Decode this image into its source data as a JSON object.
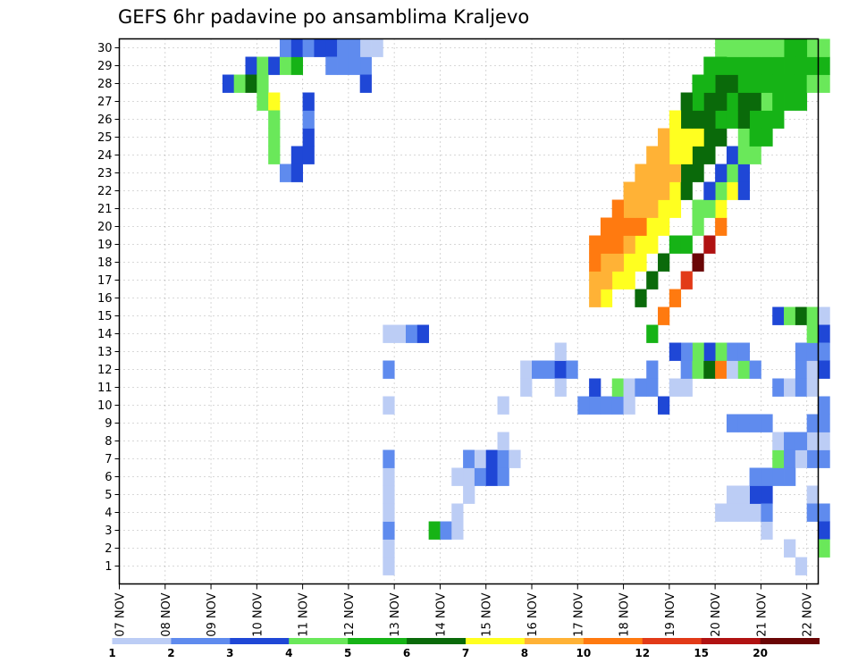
{
  "chart_data": {
    "type": "heatmap",
    "title": "GEFS 6hr padavine po ansamblima Kraljevo",
    "xlabel": "",
    "ylabel": "",
    "y_categories": [
      "1",
      "2",
      "3",
      "4",
      "5",
      "6",
      "7",
      "8",
      "9",
      "10",
      "11",
      "12",
      "13",
      "14",
      "15",
      "16",
      "17",
      "18",
      "19",
      "20",
      "21",
      "22",
      "23",
      "24",
      "25",
      "26",
      "27",
      "28",
      "29",
      "30"
    ],
    "x_tick_labels": [
      "07 NOV",
      "08 NOV",
      "09 NOV",
      "10 NOV",
      "11 NOV",
      "12 NOV",
      "13 NOV",
      "14 NOV",
      "15 NOV",
      "16 NOV",
      "17 NOV",
      "18 NOV",
      "19 NOV",
      "20 NOV",
      "21 NOV",
      "22 NOV"
    ],
    "x_unit": "6-hour steps from 07 NOV 00Z",
    "x_range": [
      0,
      61
    ],
    "grid": true,
    "legend": {
      "placement": "bottom",
      "colors": [
        "#bccdf5",
        "#5f8bee",
        "#1f47d6",
        "#6ae85a",
        "#16b316",
        "#0a6a0a",
        "#ffff20",
        "#ffb236",
        "#ff7a10",
        "#e23a18",
        "#b01212",
        "#6a0606"
      ],
      "tick_labels": [
        "1",
        "2",
        "3",
        "4",
        "5",
        "6",
        "7",
        "8",
        "10",
        "12",
        "15",
        "20"
      ]
    },
    "cells": [
      [
        11,
        29,
        3
      ],
      [
        12,
        29,
        4
      ],
      [
        13,
        29,
        3
      ],
      [
        14,
        29,
        4
      ],
      [
        15,
        29,
        5
      ],
      [
        21,
        29,
        2
      ],
      [
        21,
        30,
        1
      ],
      [
        21,
        28,
        3
      ],
      [
        23,
        1,
        1
      ],
      [
        23,
        2,
        1
      ],
      [
        23,
        3,
        2
      ],
      [
        23,
        4,
        1
      ],
      [
        23,
        5,
        1
      ],
      [
        23,
        6,
        1
      ],
      [
        23,
        7,
        2
      ],
      [
        23,
        10,
        1
      ],
      [
        23,
        12,
        2
      ],
      [
        23,
        14,
        1
      ],
      [
        24,
        14,
        1
      ],
      [
        25,
        14,
        2
      ],
      [
        26,
        14,
        3
      ],
      [
        9,
        28,
        3
      ],
      [
        10,
        28,
        4
      ],
      [
        11,
        28,
        6
      ],
      [
        12,
        28,
        4
      ],
      [
        12,
        27,
        4
      ],
      [
        13,
        27,
        7
      ],
      [
        13,
        24,
        4
      ],
      [
        13,
        25,
        4
      ],
      [
        13,
        26,
        4
      ],
      [
        14,
        23,
        2
      ],
      [
        15,
        23,
        3
      ],
      [
        15,
        24,
        3
      ],
      [
        16,
        24,
        3
      ],
      [
        16,
        25,
        3
      ],
      [
        16,
        26,
        2
      ],
      [
        16,
        27,
        3
      ],
      [
        14,
        30,
        2
      ],
      [
        15,
        30,
        3
      ],
      [
        16,
        30,
        2
      ],
      [
        17,
        30,
        3
      ],
      [
        18,
        30,
        3
      ],
      [
        19,
        30,
        2
      ],
      [
        20,
        30,
        2
      ],
      [
        22,
        30,
        1
      ],
      [
        18,
        29,
        2
      ],
      [
        19,
        29,
        2
      ],
      [
        20,
        29,
        2
      ],
      [
        27,
        3,
        5
      ],
      [
        28,
        3,
        2
      ],
      [
        29,
        3,
        1
      ],
      [
        29,
        4,
        1
      ],
      [
        29,
        6,
        1
      ],
      [
        30,
        6,
        1
      ],
      [
        30,
        5,
        1
      ],
      [
        30,
        7,
        2
      ],
      [
        31,
        6,
        2
      ],
      [
        31,
        7,
        1
      ],
      [
        32,
        7,
        3
      ],
      [
        32,
        6,
        3
      ],
      [
        33,
        6,
        2
      ],
      [
        33,
        7,
        2
      ],
      [
        34,
        7,
        1
      ],
      [
        33,
        8,
        1
      ],
      [
        33,
        10,
        1
      ],
      [
        35,
        11,
        1
      ],
      [
        35,
        12,
        1
      ],
      [
        36,
        12,
        2
      ],
      [
        37,
        12,
        2
      ],
      [
        38,
        12,
        3
      ],
      [
        38,
        11,
        1
      ],
      [
        38,
        13,
        1
      ],
      [
        39,
        12,
        2
      ],
      [
        40,
        10,
        2
      ],
      [
        41,
        10,
        2
      ],
      [
        41,
        11,
        3
      ],
      [
        42,
        10,
        2
      ],
      [
        43,
        10,
        2
      ],
      [
        43,
        11,
        4
      ],
      [
        44,
        10,
        1
      ],
      [
        44,
        11,
        1
      ],
      [
        45,
        11,
        2
      ],
      [
        46,
        11,
        2
      ],
      [
        47,
        10,
        3
      ],
      [
        46,
        12,
        2
      ],
      [
        48,
        11,
        1
      ],
      [
        49,
        11,
        1
      ],
      [
        49,
        12,
        2
      ],
      [
        50,
        12,
        4
      ],
      [
        51,
        12,
        6
      ],
      [
        52,
        12,
        9
      ],
      [
        53,
        12,
        1
      ],
      [
        54,
        12,
        4
      ],
      [
        53,
        13,
        2
      ],
      [
        54,
        13,
        2
      ],
      [
        55,
        12,
        2
      ],
      [
        52,
        13,
        4
      ],
      [
        51,
        13,
        3
      ],
      [
        50,
        13,
        4
      ],
      [
        49,
        13,
        2
      ],
      [
        48,
        13,
        3
      ],
      [
        57,
        11,
        2
      ],
      [
        58,
        11,
        1
      ],
      [
        59,
        11,
        2
      ],
      [
        60,
        11,
        1
      ],
      [
        59,
        12,
        2
      ],
      [
        60,
        12,
        1
      ],
      [
        59,
        13,
        2
      ],
      [
        60,
        13,
        2
      ],
      [
        57,
        15,
        3
      ],
      [
        58,
        15,
        4
      ],
      [
        59,
        15,
        6
      ],
      [
        60,
        14,
        4
      ],
      [
        60,
        15,
        4
      ],
      [
        61,
        15,
        1
      ],
      [
        61,
        14,
        3
      ],
      [
        61,
        13,
        2
      ],
      [
        61,
        12,
        3
      ],
      [
        61,
        10,
        2
      ],
      [
        60,
        7,
        2
      ],
      [
        61,
        7,
        2
      ],
      [
        60,
        5,
        1
      ],
      [
        60,
        4,
        2
      ],
      [
        61,
        4,
        2
      ],
      [
        61,
        3,
        3
      ],
      [
        61,
        2,
        4
      ],
      [
        59,
        1,
        1
      ],
      [
        58,
        2,
        1
      ],
      [
        56,
        3,
        1
      ],
      [
        55,
        4,
        1
      ],
      [
        52,
        4,
        1
      ],
      [
        53,
        4,
        1
      ],
      [
        54,
        4,
        1
      ],
      [
        55,
        5,
        3
      ],
      [
        56,
        5,
        3
      ],
      [
        56,
        4,
        2
      ],
      [
        53,
        5,
        1
      ],
      [
        54,
        5,
        1
      ],
      [
        55,
        6,
        2
      ],
      [
        56,
        6,
        2
      ],
      [
        57,
        6,
        2
      ],
      [
        58,
        6,
        2
      ],
      [
        57,
        7,
        4
      ],
      [
        58,
        7,
        2
      ],
      [
        59,
        7,
        1
      ],
      [
        60,
        8,
        1
      ],
      [
        61,
        8,
        1
      ],
      [
        60,
        9,
        2
      ],
      [
        61,
        9,
        2
      ],
      [
        53,
        9,
        2
      ],
      [
        54,
        9,
        2
      ],
      [
        55,
        9,
        2
      ],
      [
        56,
        9,
        2
      ],
      [
        57,
        8,
        1
      ],
      [
        58,
        8,
        2
      ],
      [
        59,
        8,
        2
      ],
      [
        46,
        14,
        5
      ],
      [
        47,
        15,
        9
      ],
      [
        48,
        16,
        9
      ],
      [
        49,
        17,
        10
      ],
      [
        50,
        18,
        12
      ],
      [
        51,
        19,
        11
      ],
      [
        52,
        20,
        9
      ],
      [
        52,
        21,
        7
      ],
      [
        53,
        22,
        7
      ],
      [
        53,
        23,
        4
      ],
      [
        54,
        22,
        3
      ],
      [
        54,
        23,
        3
      ],
      [
        45,
        16,
        6
      ],
      [
        46,
        17,
        6
      ],
      [
        47,
        18,
        6
      ],
      [
        48,
        19,
        5
      ],
      [
        49,
        19,
        5
      ],
      [
        50,
        20,
        4
      ],
      [
        50,
        21,
        4
      ],
      [
        51,
        21,
        4
      ],
      [
        52,
        22,
        4
      ],
      [
        51,
        22,
        3
      ],
      [
        52,
        23,
        3
      ],
      [
        53,
        24,
        3
      ],
      [
        54,
        24,
        4
      ],
      [
        54,
        25,
        4
      ],
      [
        55,
        24,
        4
      ],
      [
        55,
        25,
        5
      ],
      [
        55,
        26,
        5
      ],
      [
        56,
        25,
        5
      ],
      [
        56,
        26,
        5
      ],
      [
        56,
        27,
        4
      ],
      [
        57,
        26,
        5
      ],
      [
        57,
        27,
        5
      ],
      [
        58,
        27,
        5
      ],
      [
        59,
        27,
        5
      ],
      [
        58,
        28,
        5
      ],
      [
        59,
        28,
        5
      ],
      [
        60,
        28,
        4
      ],
      [
        61,
        28,
        4
      ],
      [
        44,
        17,
        7
      ],
      [
        44,
        18,
        7
      ],
      [
        45,
        18,
        7
      ],
      [
        45,
        19,
        7
      ],
      [
        46,
        19,
        7
      ],
      [
        46,
        20,
        7
      ],
      [
        47,
        20,
        7
      ],
      [
        47,
        21,
        7
      ],
      [
        48,
        21,
        7
      ],
      [
        48,
        22,
        7
      ],
      [
        49,
        22,
        6
      ],
      [
        49,
        23,
        6
      ],
      [
        50,
        23,
        6
      ],
      [
        50,
        24,
        6
      ],
      [
        51,
        24,
        6
      ],
      [
        51,
        25,
        6
      ],
      [
        52,
        25,
        6
      ],
      [
        52,
        26,
        5
      ],
      [
        53,
        26,
        5
      ],
      [
        53,
        27,
        5
      ],
      [
        54,
        26,
        6
      ],
      [
        54,
        27,
        6
      ],
      [
        55,
        27,
        6
      ],
      [
        56,
        28,
        5
      ],
      [
        57,
        28,
        5
      ],
      [
        42,
        16,
        7
      ],
      [
        43,
        17,
        7
      ],
      [
        42,
        18,
        8
      ],
      [
        43,
        18,
        8
      ],
      [
        43,
        19,
        9
      ],
      [
        44,
        19,
        8
      ],
      [
        44,
        20,
        9
      ],
      [
        45,
        20,
        9
      ],
      [
        45,
        21,
        8
      ],
      [
        46,
        21,
        8
      ],
      [
        46,
        22,
        8
      ],
      [
        47,
        22,
        8
      ],
      [
        47,
        23,
        8
      ],
      [
        48,
        23,
        8
      ],
      [
        48,
        24,
        7
      ],
      [
        49,
        24,
        7
      ],
      [
        49,
        25,
        7
      ],
      [
        50,
        25,
        7
      ],
      [
        50,
        26,
        6
      ],
      [
        51,
        26,
        6
      ],
      [
        51,
        27,
        6
      ],
      [
        52,
        27,
        6
      ],
      [
        52,
        28,
        6
      ],
      [
        53,
        28,
        6
      ],
      [
        53,
        29,
        5
      ],
      [
        54,
        29,
        5
      ],
      [
        55,
        29,
        5
      ],
      [
        54,
        28,
        5
      ],
      [
        55,
        28,
        5
      ],
      [
        56,
        29,
        5
      ],
      [
        57,
        29,
        5
      ],
      [
        58,
        29,
        5
      ],
      [
        59,
        29,
        5
      ],
      [
        60,
        29,
        5
      ],
      [
        61,
        29,
        5
      ],
      [
        60,
        30,
        4
      ],
      [
        61,
        30,
        4
      ],
      [
        59,
        30,
        5
      ],
      [
        58,
        30,
        5
      ],
      [
        57,
        30,
        4
      ],
      [
        56,
        30,
        4
      ],
      [
        55,
        30,
        4
      ],
      [
        54,
        30,
        4
      ],
      [
        53,
        30,
        4
      ],
      [
        52,
        30,
        4
      ],
      [
        51,
        29,
        5
      ],
      [
        52,
        29,
        5
      ],
      [
        50,
        28,
        5
      ],
      [
        51,
        28,
        5
      ],
      [
        50,
        27,
        5
      ],
      [
        49,
        26,
        6
      ],
      [
        49,
        27,
        6
      ],
      [
        48,
        25,
        7
      ],
      [
        48,
        26,
        7
      ],
      [
        47,
        24,
        8
      ],
      [
        47,
        25,
        8
      ],
      [
        46,
        23,
        8
      ],
      [
        46,
        24,
        8
      ],
      [
        45,
        22,
        8
      ],
      [
        45,
        23,
        8
      ],
      [
        44,
        21,
        8
      ],
      [
        44,
        22,
        8
      ],
      [
        43,
        20,
        9
      ],
      [
        43,
        21,
        9
      ],
      [
        42,
        19,
        9
      ],
      [
        42,
        20,
        9
      ],
      [
        42,
        17,
        8
      ],
      [
        41,
        16,
        8
      ],
      [
        41,
        17,
        8
      ],
      [
        41,
        18,
        9
      ],
      [
        41,
        19,
        9
      ]
    ]
  }
}
